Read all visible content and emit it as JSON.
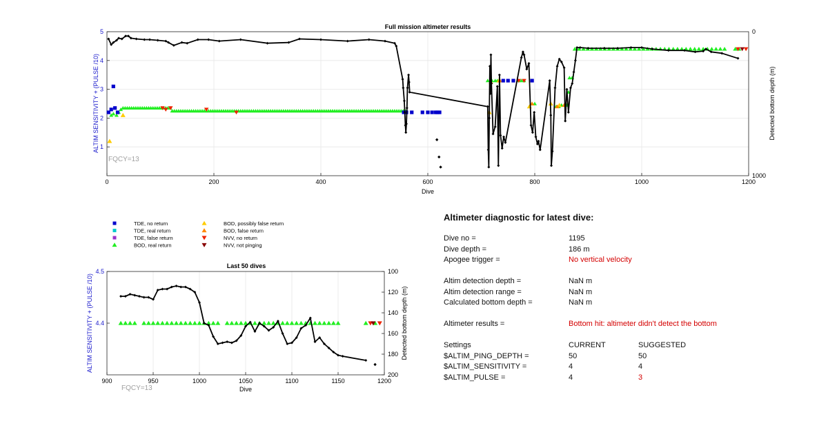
{
  "chart_data": [
    {
      "type": "scatter",
      "title": "Full mission altimeter results",
      "xlabel": "Dive",
      "ylabel": "ALTIM SENSITIVITY + (PULSE /10)",
      "y2label": "Detected bottom depth (m)",
      "xlim": [
        0,
        1200
      ],
      "ylim": [
        0,
        5
      ],
      "y2lim": [
        1000,
        0
      ],
      "xticks": [
        "0",
        "200",
        "400",
        "600",
        "800",
        "1000",
        "1200"
      ],
      "yticks": [
        "1",
        "2",
        "3",
        "4",
        "5"
      ],
      "y2ticks": [
        "0",
        "1000"
      ],
      "grid": true,
      "annotation": "FQCY=13",
      "depth_line": [
        [
          3,
          50
        ],
        [
          8,
          90
        ],
        [
          12,
          75
        ],
        [
          18,
          60
        ],
        [
          22,
          45
        ],
        [
          28,
          50
        ],
        [
          35,
          30
        ],
        [
          40,
          30
        ],
        [
          45,
          45
        ],
        [
          55,
          50
        ],
        [
          70,
          55
        ],
        [
          80,
          55
        ],
        [
          95,
          60
        ],
        [
          110,
          65
        ],
        [
          115,
          75
        ],
        [
          125,
          95
        ],
        [
          140,
          75
        ],
        [
          150,
          80
        ],
        [
          170,
          55
        ],
        [
          190,
          55
        ],
        [
          210,
          65
        ],
        [
          250,
          55
        ],
        [
          300,
          80
        ],
        [
          340,
          75
        ],
        [
          360,
          50
        ],
        [
          400,
          55
        ],
        [
          450,
          65
        ],
        [
          490,
          55
        ],
        [
          520,
          65
        ],
        [
          538,
          80
        ],
        [
          541,
          100
        ],
        [
          553,
          330
        ],
        [
          554,
          390
        ],
        [
          556,
          480
        ],
        [
          557,
          560
        ],
        [
          558,
          650
        ],
        [
          559,
          700
        ],
        [
          560,
          640
        ],
        [
          561,
          530
        ],
        [
          562,
          390
        ],
        [
          564,
          300
        ],
        [
          565,
          350
        ],
        [
          566,
          420
        ],
        [
          712,
          520
        ],
        [
          713,
          820
        ],
        [
          714,
          940
        ],
        [
          715,
          600
        ],
        [
          716,
          240
        ],
        [
          717,
          430
        ],
        [
          718,
          160
        ],
        [
          719,
          360
        ],
        [
          722,
          710
        ],
        [
          726,
          660
        ],
        [
          730,
          380
        ],
        [
          732,
          930
        ],
        [
          734,
          300
        ],
        [
          736,
          720
        ],
        [
          739,
          810
        ],
        [
          742,
          730
        ],
        [
          745,
          770
        ],
        [
          775,
          180
        ],
        [
          778,
          140
        ],
        [
          780,
          160
        ],
        [
          785,
          260
        ],
        [
          789,
          220
        ],
        [
          793,
          650
        ],
        [
          796,
          700
        ],
        [
          799,
          560
        ],
        [
          802,
          730
        ],
        [
          805,
          780
        ],
        [
          807,
          760
        ],
        [
          810,
          820
        ],
        [
          828,
          340
        ],
        [
          830,
          580
        ],
        [
          831,
          930
        ],
        [
          833,
          830
        ],
        [
          838,
          390
        ],
        [
          842,
          240
        ],
        [
          846,
          190
        ],
        [
          850,
          210
        ],
        [
          855,
          250
        ],
        [
          857,
          620
        ],
        [
          860,
          400
        ],
        [
          863,
          560
        ],
        [
          867,
          390
        ],
        [
          870,
          360
        ],
        [
          873,
          280
        ],
        [
          876,
          200
        ],
        [
          879,
          110
        ],
        [
          885,
          110
        ],
        [
          900,
          115
        ],
        [
          930,
          115
        ],
        [
          955,
          115
        ],
        [
          980,
          110
        ],
        [
          1000,
          110
        ],
        [
          1020,
          120
        ],
        [
          1050,
          130
        ],
        [
          1080,
          130
        ],
        [
          1100,
          140
        ],
        [
          1115,
          135
        ],
        [
          1120,
          120
        ],
        [
          1130,
          140
        ],
        [
          1150,
          150
        ],
        [
          1180,
          185
        ]
      ],
      "depth_points": [
        [
          617,
          750
        ],
        [
          621,
          870
        ],
        [
          624,
          940
        ]
      ],
      "tde_no_return": [
        [
          3,
          2.2
        ],
        [
          8,
          2.3
        ],
        [
          12,
          3.1
        ],
        [
          15,
          2.35
        ],
        [
          20,
          2.2
        ],
        [
          555,
          2.2
        ],
        [
          560,
          2.2
        ],
        [
          570,
          2.2
        ],
        [
          590,
          2.2
        ],
        [
          600,
          2.2
        ],
        [
          608,
          2.2
        ],
        [
          615,
          2.2
        ],
        [
          618,
          2.2
        ],
        [
          622,
          2.2
        ],
        [
          741,
          3.3
        ],
        [
          750,
          3.3
        ],
        [
          760,
          3.3
        ],
        [
          795,
          3.3
        ]
      ],
      "bod_real_start": 30,
      "bod_real_end": 560,
      "bod_real_step": 4,
      "bod_real_early": [
        [
          8,
          2.1
        ],
        [
          12,
          2.15
        ],
        [
          18,
          2.1
        ],
        [
          22,
          2.2
        ],
        [
          26,
          2.3
        ]
      ],
      "bod_real_late": [
        [
          712,
          3.3
        ],
        [
          720,
          3.3
        ],
        [
          726,
          3.3
        ],
        [
          730,
          3.3
        ],
        [
          770,
          3.3
        ],
        [
          775,
          3.3
        ],
        [
          780,
          3.3
        ],
        [
          790,
          2.4
        ],
        [
          800,
          2.5
        ],
        [
          840,
          2.4
        ],
        [
          845,
          2.4
        ],
        [
          850,
          2.45
        ],
        [
          860,
          2.45
        ],
        [
          863,
          2.9
        ],
        [
          865,
          3.4
        ],
        [
          870,
          3.4
        ]
      ],
      "bod_real_high_start": 875,
      "bod_real_high_end": 1160,
      "bod_real_high_step": 8,
      "bod_real_high_value": 4.4,
      "bod_real_tail": [
        [
          1175,
          4.4
        ],
        [
          1182,
          4.4
        ]
      ],
      "bod_possibly_false": [
        [
          5,
          1.2
        ],
        [
          30,
          2.1
        ],
        [
          715,
          2.2
        ],
        [
          733,
          3.3
        ],
        [
          790,
          2.4
        ],
        [
          830,
          2.5
        ],
        [
          846,
          2.45
        ]
      ],
      "bod_false": [
        [
          718,
          3.25
        ],
        [
          735,
          3.3
        ],
        [
          795,
          2.5
        ],
        [
          842,
          2.4
        ],
        [
          855,
          2.45
        ]
      ],
      "nvv_no_return": [
        [
          104,
          2.35
        ],
        [
          110,
          2.3
        ],
        [
          119,
          2.35
        ],
        [
          186,
          2.3
        ],
        [
          242,
          2.2
        ],
        [
          770,
          3.3
        ],
        [
          780,
          3.3
        ],
        [
          1180,
          4.4
        ],
        [
          1195,
          4.4
        ]
      ],
      "nvv_not_pinging": [
        [
          1188,
          4.4
        ]
      ]
    },
    {
      "type": "scatter",
      "title": "Last 50 dives",
      "xlabel": "Dive",
      "ylabel": "ALTIM SENSITIVITY + (PULSE /10)",
      "y2label": "Detected bottom depth (m)",
      "xlim": [
        900,
        1200
      ],
      "ylim": [
        4.3,
        4.5
      ],
      "y2lim": [
        200,
        100
      ],
      "xticks": [
        "900",
        "950",
        "1000",
        "1050",
        "1100",
        "1150",
        "1200"
      ],
      "yticks": [
        "4.4",
        "4.5"
      ],
      "y2ticks": [
        "100",
        "120",
        "140",
        "160",
        "180",
        "200"
      ],
      "grid": true,
      "annotation": "FQCY=13",
      "depth": [
        [
          915,
          124
        ],
        [
          920,
          124
        ],
        [
          925,
          122
        ],
        [
          930,
          123
        ],
        [
          935,
          124
        ],
        [
          940,
          125
        ],
        [
          945,
          125
        ],
        [
          950,
          127
        ],
        [
          955,
          118
        ],
        [
          960,
          117
        ],
        [
          965,
          117
        ],
        [
          970,
          115
        ],
        [
          975,
          114
        ],
        [
          980,
          115
        ],
        [
          985,
          115
        ],
        [
          990,
          117
        ],
        [
          995,
          120
        ],
        [
          1000,
          130
        ],
        [
          1005,
          150
        ],
        [
          1010,
          152
        ],
        [
          1015,
          163
        ],
        [
          1020,
          170
        ],
        [
          1025,
          169
        ],
        [
          1030,
          168
        ],
        [
          1035,
          169
        ],
        [
          1040,
          167
        ],
        [
          1045,
          162
        ],
        [
          1050,
          153
        ],
        [
          1055,
          149
        ],
        [
          1060,
          158
        ],
        [
          1065,
          150
        ],
        [
          1070,
          153
        ],
        [
          1075,
          157
        ],
        [
          1080,
          154
        ],
        [
          1085,
          148
        ],
        [
          1090,
          160
        ],
        [
          1095,
          170
        ],
        [
          1100,
          169
        ],
        [
          1105,
          164
        ],
        [
          1110,
          155
        ],
        [
          1115,
          152
        ],
        [
          1120,
          145
        ],
        [
          1125,
          168
        ],
        [
          1130,
          164
        ],
        [
          1135,
          170
        ],
        [
          1140,
          174
        ],
        [
          1145,
          178
        ],
        [
          1150,
          181
        ],
        [
          1155,
          182
        ],
        [
          1180,
          186
        ]
      ],
      "depth_points": [
        [
          1190,
          190
        ]
      ],
      "bod_real": [
        [
          915,
          4.4
        ],
        [
          920,
          4.4
        ],
        [
          925,
          4.4
        ],
        [
          930,
          4.4
        ],
        [
          940,
          4.4
        ],
        [
          945,
          4.4
        ],
        [
          950,
          4.4
        ],
        [
          955,
          4.4
        ],
        [
          960,
          4.4
        ],
        [
          965,
          4.4
        ],
        [
          970,
          4.4
        ],
        [
          975,
          4.4
        ],
        [
          980,
          4.4
        ],
        [
          985,
          4.4
        ],
        [
          990,
          4.4
        ],
        [
          995,
          4.4
        ],
        [
          1000,
          4.4
        ],
        [
          1005,
          4.4
        ],
        [
          1010,
          4.4
        ],
        [
          1015,
          4.4
        ],
        [
          1020,
          4.4
        ],
        [
          1030,
          4.4
        ],
        [
          1035,
          4.4
        ],
        [
          1040,
          4.4
        ],
        [
          1045,
          4.4
        ],
        [
          1050,
          4.4
        ],
        [
          1055,
          4.4
        ],
        [
          1060,
          4.4
        ],
        [
          1065,
          4.4
        ],
        [
          1070,
          4.4
        ],
        [
          1075,
          4.4
        ],
        [
          1080,
          4.4
        ],
        [
          1085,
          4.4
        ],
        [
          1090,
          4.4
        ],
        [
          1095,
          4.4
        ],
        [
          1100,
          4.4
        ],
        [
          1105,
          4.4
        ],
        [
          1110,
          4.4
        ],
        [
          1115,
          4.4
        ],
        [
          1120,
          4.4
        ],
        [
          1125,
          4.4
        ],
        [
          1130,
          4.4
        ],
        [
          1135,
          4.4
        ],
        [
          1140,
          4.4
        ],
        [
          1145,
          4.4
        ],
        [
          1150,
          4.4
        ],
        [
          1180,
          4.4
        ],
        [
          1190,
          4.4
        ]
      ],
      "nvv_no_return": [
        [
          1185,
          4.4
        ],
        [
          1195,
          4.4
        ]
      ],
      "nvv_not_pinging": [
        [
          1188,
          4.4
        ]
      ]
    }
  ],
  "legend": [
    {
      "label": "TDE, no return",
      "marker": "square",
      "color": "#0000cc"
    },
    {
      "label": "TDE, real return",
      "marker": "square",
      "color": "#00cccc"
    },
    {
      "label": "TDE, false return",
      "marker": "square",
      "color": "#9933cc"
    },
    {
      "label": "BOD, real return",
      "marker": "triangle-up",
      "color": "#22ee22"
    },
    {
      "label": "BOD, possibly false return",
      "marker": "triangle-up",
      "color": "#ffcc00"
    },
    {
      "label": "BOD, false return",
      "marker": "triangle-up",
      "color": "#ff8800"
    },
    {
      "label": "NVV, no return",
      "marker": "triangle-down",
      "color": "#ee2200"
    },
    {
      "label": "NVV, not pinging",
      "marker": "triangle-down",
      "color": "#880000"
    }
  ],
  "colors": {
    "axis_label": "#1a1acc",
    "annotation": "#a0a0a0",
    "depth_line": "#000000",
    "alert": "#d40000"
  },
  "diagnostic": {
    "title": "Altimeter diagnostic for latest dive:",
    "dive_no_label": "Dive no =",
    "dive_no": "1195",
    "dive_depth_label": "Dive depth =",
    "dive_depth": "186 m",
    "apogee_label": "Apogee trigger =",
    "apogee": "No vertical velocity",
    "altim_det_depth_label": "Altim detection depth =",
    "altim_det_depth": "NaN m",
    "altim_det_range_label": "Altim detection range =",
    "altim_det_range": "NaN m",
    "calc_bottom_label": "Calculated bottom depth =",
    "calc_bottom": "NaN m",
    "results_label": "Altimeter results =",
    "results": "Bottom hit: altimeter didn't detect the bottom",
    "settings_label": "Settings",
    "current_label": "CURRENT",
    "suggested_label": "SUGGESTED",
    "settings": [
      {
        "name": "$ALTIM_PING_DEPTH =",
        "current": "50",
        "suggested": "50"
      },
      {
        "name": "$ALTIM_SENSITIVITY =",
        "current": "4",
        "suggested": "4"
      },
      {
        "name": "$ALTIM_PULSE =",
        "current": "4",
        "suggested": "3"
      }
    ]
  }
}
